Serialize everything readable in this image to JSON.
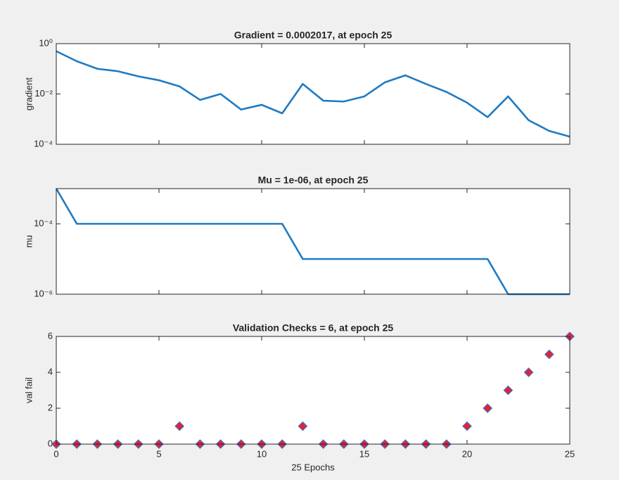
{
  "chart_data": [
    {
      "type": "line",
      "title": "Gradient = 0.0002017, at epoch 25",
      "ylabel": "gradient",
      "yscale": "log",
      "ylim": [
        0.0001,
        1
      ],
      "yticks": [
        {
          "value": 1,
          "label": "10⁰"
        },
        {
          "value": 0.01,
          "label": "10⁻²"
        },
        {
          "value": 0.0001,
          "label": "10⁻⁴"
        }
      ],
      "xlim": [
        0,
        25
      ],
      "color": "#1f7bc1",
      "x": [
        0,
        1,
        2,
        3,
        4,
        5,
        6,
        7,
        8,
        9,
        10,
        11,
        12,
        13,
        14,
        15,
        16,
        17,
        18,
        19,
        20,
        21,
        22,
        23,
        24,
        25
      ],
      "values": [
        0.5,
        0.2,
        0.1,
        0.08,
        0.05,
        0.035,
        0.02,
        0.0058,
        0.01,
        0.0024,
        0.0037,
        0.0017,
        0.025,
        0.0054,
        0.005,
        0.008,
        0.029,
        0.055,
        0.025,
        0.012,
        0.0045,
        0.0012,
        0.008,
        0.0009,
        0.00034,
        0.0002017
      ]
    },
    {
      "type": "line",
      "title": "Mu = 1e-06, at epoch 25",
      "ylabel": "mu",
      "yscale": "log",
      "ylim": [
        1e-06,
        0.001
      ],
      "yticks": [
        {
          "value": 0.0001,
          "label": "10⁻⁴"
        },
        {
          "value": 1e-06,
          "label": "10⁻⁶"
        }
      ],
      "xlim": [
        0,
        25
      ],
      "color": "#1f7bc1",
      "x": [
        0,
        1,
        2,
        3,
        4,
        5,
        6,
        7,
        8,
        9,
        10,
        11,
        12,
        13,
        14,
        15,
        16,
        17,
        18,
        19,
        20,
        21,
        22,
        23,
        24,
        25
      ],
      "values": [
        0.001,
        0.0001,
        0.0001,
        0.0001,
        0.0001,
        0.0001,
        0.0001,
        0.0001,
        0.0001,
        0.0001,
        0.0001,
        0.0001,
        1e-05,
        1e-05,
        1e-05,
        1e-05,
        1e-05,
        1e-05,
        1e-05,
        1e-05,
        1e-05,
        1e-05,
        1e-06,
        1e-06,
        1e-06,
        1e-06
      ]
    },
    {
      "type": "scatter",
      "title": "Validation Checks = 6, at epoch 25",
      "ylabel": "val fail",
      "xlabel": "25 Epochs",
      "yscale": "linear",
      "ylim": [
        0,
        6
      ],
      "yticks": [
        0,
        2,
        4,
        6
      ],
      "xlim": [
        0,
        25
      ],
      "xticks": [
        0,
        5,
        10,
        15,
        20,
        25
      ],
      "color": "#e8222a",
      "edge_color": "#3b6fd1",
      "x": [
        0,
        1,
        2,
        3,
        4,
        5,
        6,
        7,
        8,
        9,
        10,
        11,
        12,
        13,
        14,
        15,
        16,
        17,
        18,
        19,
        20,
        21,
        22,
        23,
        24,
        25
      ],
      "values": [
        0,
        0,
        0,
        0,
        0,
        0,
        1,
        0,
        0,
        0,
        0,
        0,
        1,
        0,
        0,
        0,
        0,
        0,
        0,
        0,
        1,
        2,
        3,
        4,
        5,
        6
      ]
    }
  ]
}
